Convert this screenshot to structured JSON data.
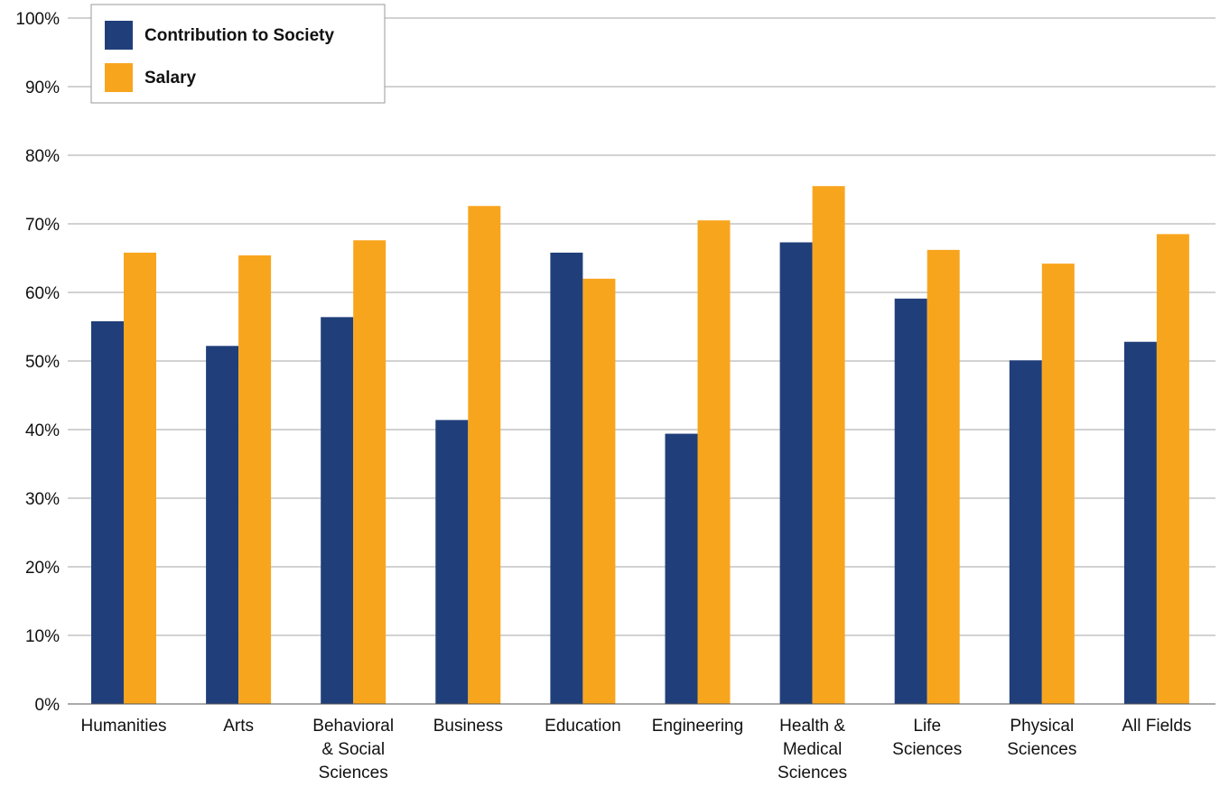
{
  "chart_data": {
    "type": "bar",
    "categories": [
      [
        "Humanities"
      ],
      [
        "Arts"
      ],
      [
        "Behavioral",
        "& Social",
        "Sciences"
      ],
      [
        "Business"
      ],
      [
        "Education"
      ],
      [
        "Engineering"
      ],
      [
        "Health &",
        "Medical",
        "Sciences"
      ],
      [
        "Life",
        "Sciences"
      ],
      [
        "Physical",
        "Sciences"
      ],
      [
        "All Fields"
      ]
    ],
    "series": [
      {
        "name": "Contribution to Society",
        "color": "#203f7a",
        "values": [
          55.8,
          52.2,
          56.4,
          41.4,
          65.8,
          39.4,
          67.3,
          59.1,
          50.1,
          52.8
        ]
      },
      {
        "name": "Salary",
        "color": "#f8a51e",
        "values": [
          65.8,
          65.4,
          67.6,
          72.6,
          62.0,
          70.5,
          75.5,
          66.2,
          64.2,
          68.5
        ]
      }
    ],
    "ylim": [
      0,
      100
    ],
    "yticks": [
      "0%",
      "10%",
      "20%",
      "30%",
      "40%",
      "50%",
      "60%",
      "70%",
      "80%",
      "90%",
      "100%"
    ],
    "grid": true,
    "legend_position": "top-left",
    "title": "",
    "xlabel": "",
    "ylabel": ""
  }
}
